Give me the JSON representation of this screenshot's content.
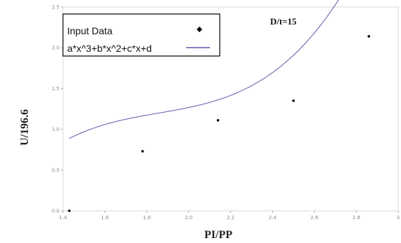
{
  "chart_data": {
    "type": "scatter",
    "xlabel": "PI/PP",
    "ylabel": "U/196.6",
    "annotation": "D/t=15",
    "xlim": [
      1.4,
      3.0
    ],
    "ylim": [
      0.0,
      2.5
    ],
    "x_ticks": [
      "1.4",
      "1.6",
      "1.8",
      "2.0",
      "2.2",
      "2.4",
      "2.6",
      "2.8",
      "3"
    ],
    "y_ticks": [
      "0.0",
      "0.5",
      "1.0",
      "1.5",
      "2.0",
      "2.5"
    ],
    "legend": {
      "position": "top-left",
      "entries": [
        "Input Data",
        "a*x^3+b*x^2+c*x+d"
      ]
    },
    "series": [
      {
        "name": "Input Data",
        "kind": "points",
        "x": [
          1.43,
          1.78,
          2.14,
          2.5,
          2.86
        ],
        "y": [
          0.0,
          0.73,
          1.11,
          1.35,
          2.14
        ]
      },
      {
        "name": "a*x^3+b*x^2+c*x+d",
        "kind": "fit-line",
        "color": "#5a5aa8",
        "coefficients": {
          "a": 1.5889,
          "b": -8.8467,
          "c": 16.8616,
          "d": -9.7807
        }
      }
    ]
  }
}
